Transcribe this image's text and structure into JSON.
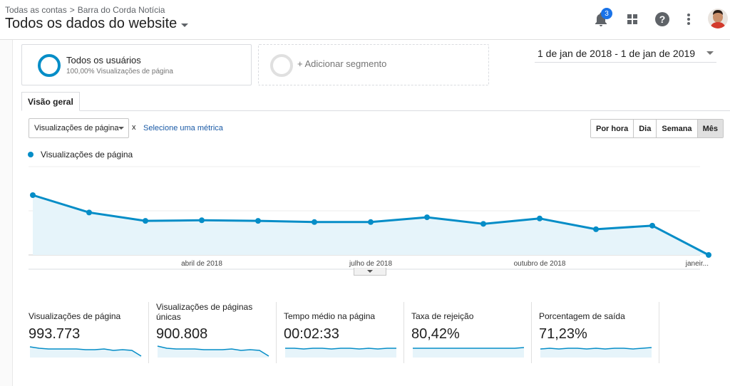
{
  "header": {
    "breadcrumb": [
      "Todas as contas",
      "Barra do Corda Notícia"
    ],
    "breadcrumb_sep": ">",
    "view_title": "Todos os dados do website",
    "notifications_count": "3"
  },
  "segments": {
    "primary": {
      "name": "Todos os usuários",
      "sub": "100,00% Visualizações de página"
    },
    "add_label": "+ Adicionar segmento"
  },
  "date_range": "1 de jan de 2018 - 1 de jan de 2019",
  "tab": "Visão geral",
  "controls": {
    "metric_selected": "Visualizações de página",
    "x_label": "x",
    "select_metric_link": "Selecione uma métrica",
    "granularity": [
      "Por hora",
      "Dia",
      "Semana",
      "Mês"
    ],
    "granularity_active": "Mês"
  },
  "colors": {
    "series": "#058dc7",
    "fill": "#e6f4fa"
  },
  "chart_data": {
    "type": "area",
    "series": [
      {
        "name": "Visualizações de página",
        "values": [
          1.0,
          0.71,
          0.57,
          0.58,
          0.57,
          0.55,
          0.55,
          0.63,
          0.52,
          0.61,
          0.43,
          0.49,
          0.0
        ]
      }
    ],
    "x_tick_labels": [
      {
        "label": "abril de 2018",
        "index": 3
      },
      {
        "label": "julho de 2018",
        "index": 6
      },
      {
        "label": "outubro de 2018",
        "index": 9
      },
      {
        "label": "janeir...",
        "index": 12
      }
    ],
    "grid": true,
    "y_scale": "relative (no y tick labels shown)"
  },
  "scorecards": [
    {
      "label": "Visualizações de página",
      "value": "993.773",
      "spark": [
        0.7,
        0.6,
        0.55,
        0.55,
        0.55,
        0.55,
        0.5,
        0.5,
        0.55,
        0.45,
        0.5,
        0.45,
        0.05
      ]
    },
    {
      "label": "Visualizações de páginas únicas",
      "value": "900.808",
      "spark": [
        0.75,
        0.6,
        0.55,
        0.55,
        0.55,
        0.5,
        0.5,
        0.5,
        0.55,
        0.45,
        0.5,
        0.45,
        0.05
      ]
    },
    {
      "label": "Tempo médio na página",
      "value": "00:02:33",
      "spark": [
        0.6,
        0.6,
        0.55,
        0.6,
        0.6,
        0.55,
        0.6,
        0.6,
        0.55,
        0.6,
        0.55,
        0.6,
        0.6
      ]
    },
    {
      "label": "Taxa de rejeição",
      "value": "80,42%",
      "spark": [
        0.6,
        0.6,
        0.6,
        0.6,
        0.6,
        0.6,
        0.6,
        0.6,
        0.6,
        0.6,
        0.6,
        0.6,
        0.65
      ]
    },
    {
      "label": "Porcentagem de saída",
      "value": "71,23%",
      "spark": [
        0.55,
        0.6,
        0.55,
        0.6,
        0.6,
        0.55,
        0.6,
        0.55,
        0.6,
        0.6,
        0.55,
        0.6,
        0.65
      ]
    }
  ]
}
